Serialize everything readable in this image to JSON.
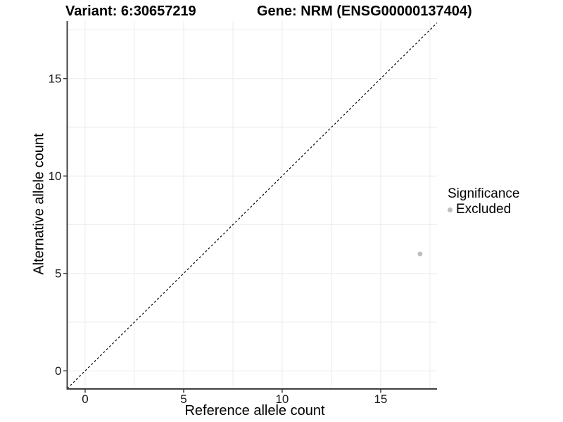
{
  "figure": {
    "title_left": "Variant: 6:30657219",
    "title_right": "Gene: NRM (ENSG00000137404)"
  },
  "legend": {
    "title": "Significance",
    "items": [
      {
        "label": "Excluded",
        "color": "#bebebe"
      }
    ]
  },
  "chart_data": {
    "type": "scatter",
    "title": "Variant: 6:30657219  /  Gene: NRM (ENSG00000137404)",
    "xlabel": "Reference allele count",
    "ylabel": "Alternative allele count",
    "xlim": [
      -0.91,
      17.86
    ],
    "ylim": [
      -0.93,
      17.95
    ],
    "x_ticks": [
      0,
      5,
      10,
      15
    ],
    "y_ticks": [
      0,
      5,
      10,
      15
    ],
    "x_minor_ticks": [
      2.5,
      7.5,
      12.5,
      17.5
    ],
    "y_minor_ticks": [
      2.5,
      7.5,
      12.5,
      17.5
    ],
    "grid": true,
    "legend_position": "right",
    "series": [
      {
        "name": "Excluded",
        "color": "#bebebe",
        "point_radius": 3.4,
        "points": [
          {
            "x": 17,
            "y": 6
          }
        ]
      }
    ],
    "reference_line": {
      "kind": "identity",
      "equation": "y = x",
      "style": "dashed",
      "color": "#000000"
    },
    "colors": {
      "grid": "#ececec",
      "axis_line": "#3f3f3f",
      "tick_mark": "#333333",
      "tick_label": "#1a1a1a",
      "background": "#ffffff"
    }
  }
}
